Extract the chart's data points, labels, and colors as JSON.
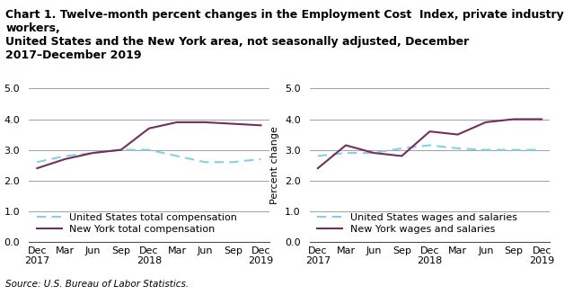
{
  "title_line1": "Chart 1. Twelve-month percent changes in the Employment Cost  Index, private industry  workers,",
  "title_line2": "United States and the New York area, not seasonally adjusted, December 2017–December 2019",
  "ylabel": "Percent change",
  "source": "Source: U.S. Bureau of Labor Statistics.",
  "x_labels": [
    "Dec\n2017",
    "Mar",
    "Jun",
    "Sep",
    "Dec\n2018",
    "Mar",
    "Jun",
    "Sep",
    "Dec\n2019"
  ],
  "x_positions": [
    0,
    1,
    2,
    3,
    4,
    5,
    6,
    7,
    8
  ],
  "ylim": [
    0.0,
    5.0
  ],
  "yticks": [
    0.0,
    1.0,
    2.0,
    3.0,
    4.0,
    5.0
  ],
  "chart1": {
    "us_total_comp": [
      2.6,
      2.8,
      2.9,
      3.0,
      3.0,
      2.8,
      2.6,
      2.6,
      2.7
    ],
    "ny_total_comp": [
      2.4,
      2.7,
      2.9,
      3.0,
      3.7,
      3.9,
      3.9,
      3.85,
      3.8
    ],
    "legend1": "United States total compensation",
    "legend2": "New York total compensation"
  },
  "chart2": {
    "us_wages_salaries": [
      2.8,
      2.9,
      2.9,
      3.05,
      3.15,
      3.05,
      3.0,
      3.0,
      3.0
    ],
    "ny_wages_salaries": [
      2.4,
      3.15,
      2.9,
      2.8,
      3.6,
      3.5,
      3.9,
      4.0,
      4.0
    ],
    "legend1": "United States wages and salaries",
    "legend2": "New York wages and salaries"
  },
  "us_color": "#87CEEB",
  "ny_color": "#722F5A",
  "us_linestyle": "dashed",
  "ny_linestyle": "solid",
  "grid_color": "#A0A0A0",
  "title_fontsize": 9,
  "axis_label_fontsize": 8,
  "tick_fontsize": 8,
  "legend_fontsize": 8,
  "source_fontsize": 7.5
}
